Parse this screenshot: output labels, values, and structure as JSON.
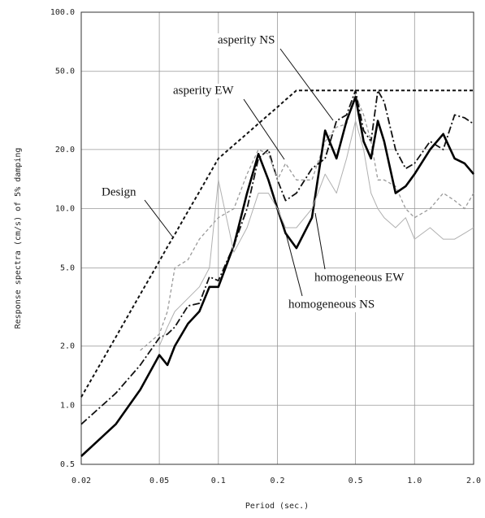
{
  "chart_data": {
    "type": "line",
    "xlabel": "Period (sec.)",
    "ylabel": "Response spectra (cm/s) of 5% damping",
    "xscale": "log",
    "yscale": "log",
    "grid": true,
    "xlim": [
      0.02,
      2.0
    ],
    "ylim": [
      0.5,
      100.0
    ],
    "xticks": [
      0.02,
      0.05,
      0.1,
      0.2,
      0.5,
      {
        "value": 1.0,
        "label": "1.0"
      },
      {
        "value": 2.0,
        "label": "2.0"
      }
    ],
    "yticks": [
      0.5,
      {
        "value": 1.0,
        "label": "1.0"
      },
      {
        "value": 2.0,
        "label": "2.0"
      },
      {
        "value": 5.0,
        "label": "5.0"
      },
      {
        "value": 10.0,
        "label": "10.0"
      },
      {
        "value": 20.0,
        "label": "20.0"
      },
      {
        "value": 50.0,
        "label": "50.0"
      },
      {
        "value": 100.0,
        "label": "100.0"
      }
    ],
    "x": [
      0.02,
      0.03,
      0.04,
      0.05,
      0.055,
      0.06,
      0.07,
      0.08,
      0.09,
      0.1,
      0.12,
      0.14,
      0.16,
      0.18,
      0.2,
      0.22,
      0.25,
      0.3,
      0.35,
      0.4,
      0.45,
      0.5,
      0.55,
      0.6,
      0.65,
      0.7,
      0.8,
      0.9,
      1.0,
      1.2,
      1.4,
      1.6,
      1.8,
      2.0
    ],
    "series": [
      {
        "name": "Design",
        "color": "#111111",
        "values": [
          1.1,
          2.22,
          3.67,
          5.4,
          6.4,
          7.4,
          9.7,
          12.2,
          15,
          18,
          21.1,
          24.1,
          27.1,
          30,
          32.9,
          35.8,
          40,
          40,
          40,
          40,
          40,
          40,
          40,
          40,
          40,
          40,
          40,
          40,
          40,
          40,
          40,
          40,
          40,
          40
        ]
      },
      {
        "name": "asperity NS",
        "color": "#111111",
        "values": [
          0.8,
          1.15,
          1.6,
          2.2,
          2.3,
          2.5,
          3.2,
          3.3,
          4.5,
          4.3,
          6.5,
          10,
          18,
          20,
          14,
          11,
          12,
          16,
          18,
          28,
          30,
          40,
          25,
          22,
          40,
          35,
          20,
          16,
          17,
          22,
          20,
          30,
          29,
          27
        ]
      },
      {
        "name": "asperity EW",
        "color": "#9a9a9a",
        "values": [
          null,
          null,
          1.9,
          2.3,
          3.0,
          5,
          5.5,
          7,
          8,
          9,
          10,
          15,
          20,
          19,
          14,
          17,
          14,
          14,
          22,
          26,
          27,
          38,
          30,
          22,
          14,
          14,
          13,
          10,
          9,
          10,
          12,
          11,
          10,
          12
        ]
      },
      {
        "name": "homogeneous NS",
        "color": "#000000",
        "values": [
          0.55,
          0.8,
          1.2,
          1.8,
          1.6,
          2.0,
          2.6,
          3.0,
          4.0,
          4.0,
          6.5,
          12,
          19,
          14,
          10,
          7.5,
          6.3,
          9,
          25,
          18,
          28,
          37,
          22,
          18,
          28,
          22,
          12,
          13,
          15,
          20,
          24,
          18,
          17,
          15
        ]
      },
      {
        "name": "homogeneous EW",
        "color": "#b0b0b0",
        "values": [
          null,
          null,
          null,
          2,
          2.5,
          3,
          3.5,
          4,
          5,
          14,
          6,
          8,
          12,
          12,
          10,
          8,
          8,
          10,
          15,
          12,
          18,
          28,
          20,
          12,
          10,
          9,
          8,
          9,
          7,
          8,
          7,
          7,
          7.5,
          8
        ]
      }
    ]
  }
}
